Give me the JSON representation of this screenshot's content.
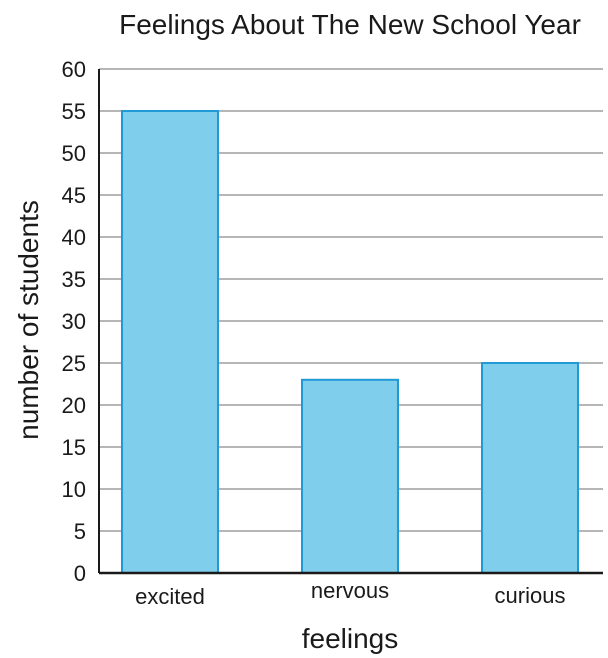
{
  "chart_data": {
    "type": "bar",
    "title": "Feelings About The New School Year",
    "xlabel": "feelings",
    "ylabel": "number of students",
    "categories": [
      "excited",
      "nervous",
      "curious"
    ],
    "values": [
      55,
      23,
      25
    ],
    "ylim": [
      0,
      60
    ],
    "yticks": [
      "0",
      "5",
      "10",
      "15",
      "20",
      "25",
      "30",
      "35",
      "40",
      "45",
      "50",
      "55",
      "60"
    ],
    "grid": true,
    "legend": "none",
    "colors": {
      "bar_fill": "#7fceec",
      "bar_stroke": "#1f9ad6",
      "grid": "#8a8a8a",
      "axis": "#1a1a1a"
    }
  }
}
